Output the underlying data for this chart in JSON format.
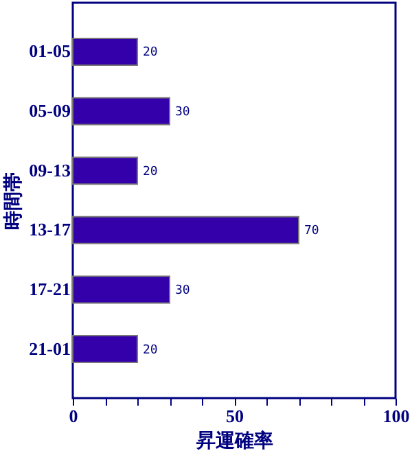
{
  "chart_data": {
    "type": "bar",
    "orientation": "horizontal",
    "xlabel": "昇運確率",
    "ylabel": "時間帯",
    "categories": [
      "01-05",
      "05-09",
      "09-13",
      "13-17",
      "17-21",
      "21-01"
    ],
    "values": [
      20,
      30,
      20,
      70,
      30,
      20
    ],
    "color": "#3300aa",
    "xlim": [
      0,
      100
    ],
    "xticks": [
      0,
      {
        "value": 10,
        "label": null
      },
      {
        "value": 20,
        "label": null
      },
      {
        "value": 30,
        "label": null
      },
      {
        "value": 40,
        "label": null
      },
      50,
      {
        "value": 60,
        "label": null
      },
      {
        "value": 70,
        "label": null
      },
      {
        "value": 80,
        "label": null
      },
      {
        "value": 90,
        "label": null
      },
      100
    ],
    "data_labels": true,
    "grid": false
  }
}
